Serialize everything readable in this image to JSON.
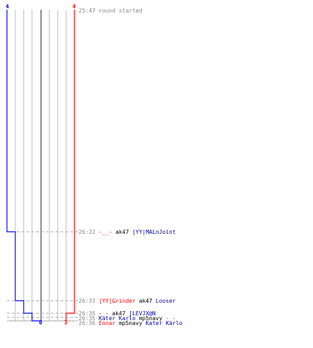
{
  "chart_data": {
    "type": "line",
    "title": "",
    "xlabel": "",
    "ylabel": "",
    "x_range": [
      0,
      4
    ],
    "grid": true,
    "series": [
      {
        "color": "#0000ff",
        "points": [
          [
            "25:47",
            4
          ],
          [
            "26:22",
            3
          ],
          [
            "26:33",
            2
          ],
          [
            "26:35",
            1
          ],
          [
            "26:36",
            0
          ]
        ],
        "end_label": "0",
        "start_label": "4"
      },
      {
        "color": "#ff0000",
        "points": [
          [
            "25:47",
            4
          ],
          [
            "26:36",
            3
          ]
        ],
        "end_label": "3",
        "start_label": "4"
      }
    ]
  },
  "events": [
    {
      "time": "25:47",
      "parts": [
        {
          "text": "round started",
          "color": "meta"
        }
      ]
    },
    {
      "time": "26:22",
      "parts": [
        {
          "text": "-__-",
          "color": "red"
        },
        {
          "text": " ak47 ",
          "color": "verb"
        },
        {
          "text": "|YY|MALnJoint",
          "color": "blue"
        }
      ]
    },
    {
      "time": "26:33",
      "parts": [
        {
          "text": "|YY|Grinder",
          "color": "red"
        },
        {
          "text": " ak47 ",
          "color": "verb"
        },
        {
          "text": "Looser",
          "color": "blue"
        }
      ]
    },
    {
      "time": "26:35",
      "parts": [
        {
          "text": "-_-",
          "color": "blue"
        },
        {
          "text": " ak47 ",
          "color": "verb"
        },
        {
          "text": "[LEVJX@N",
          "color": "blue"
        }
      ]
    },
    {
      "time": "26:35",
      "parts": [
        {
          "text": "Kater Karlo",
          "color": "blue"
        },
        {
          "text": " mp5navy ",
          "color": "verb"
        },
        {
          "text": "-_-",
          "color": "red"
        }
      ]
    },
    {
      "time": "26:36",
      "parts": [
        {
          "text": "Eonar",
          "color": "red"
        },
        {
          "text": " mp5navy ",
          "color": "verb"
        },
        {
          "text": "Kater Karlo",
          "color": "blue"
        }
      ]
    }
  ],
  "colors": {
    "red": "#ff0000",
    "blue": "#0000aa",
    "verb": "#000000",
    "meta": "#888888",
    "grid": "#bbbbbb"
  }
}
